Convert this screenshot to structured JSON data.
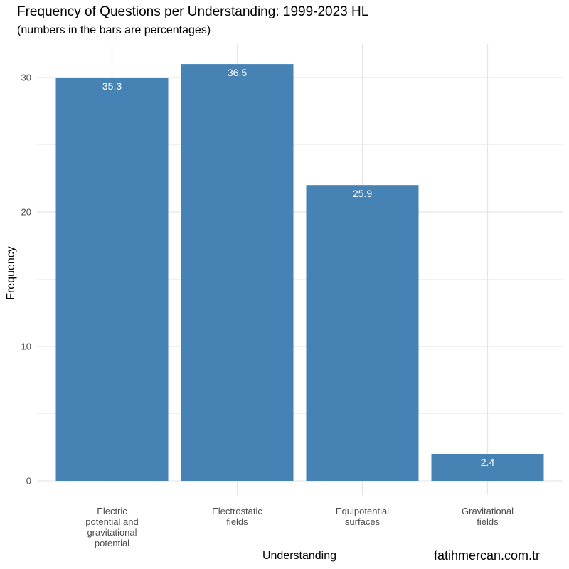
{
  "chart_data": {
    "type": "bar",
    "title": "Frequency of Questions per Understanding: 1999-2023 HL",
    "subtitle": "(numbers in the bars are percentages)",
    "xlabel": "Understanding",
    "ylabel": "Frequency",
    "categories": [
      [
        "Electric",
        "potential and",
        "gravitational",
        "potential"
      ],
      [
        "Electrostatic",
        "fields"
      ],
      [
        "Equipotential",
        "surfaces"
      ],
      [
        "Gravitational",
        "fields"
      ]
    ],
    "values": [
      30,
      31,
      22,
      2
    ],
    "bar_labels": [
      "35.3",
      "36.5",
      "25.9",
      "2.4"
    ],
    "ylim": [
      0,
      32.5
    ],
    "yticks": [
      0,
      10,
      20,
      30
    ],
    "bar_color": "#4682B4",
    "grid": true
  },
  "watermark": "fatihmercan.com.tr"
}
